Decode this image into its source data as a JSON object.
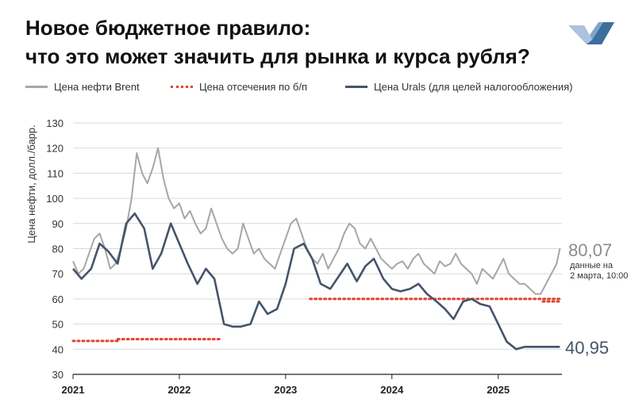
{
  "header": {
    "title": "Новое бюджетное правило:",
    "subtitle": "что это может значить для рынка и курса рубля?"
  },
  "colors": {
    "brent": "#a6a6a6",
    "cutoff": "#e0432f",
    "urals": "#44546a",
    "logo_light": "#a9c4dc",
    "logo_dark": "#3d6e9c"
  },
  "icons": {
    "logo": "brand-logo-icon"
  },
  "chart_data": {
    "type": "line",
    "title": "",
    "xlabel": "",
    "ylabel": "Цена нефти, долл./барр.",
    "ylim": [
      30,
      130
    ],
    "yticks": [
      30,
      40,
      50,
      60,
      70,
      80,
      90,
      100,
      110,
      120,
      130
    ],
    "xlim": [
      2021.0,
      2025.6
    ],
    "xticks": [
      {
        "x": 2021,
        "label": "2021"
      },
      {
        "x": 2022,
        "label": "2022"
      },
      {
        "x": 2023,
        "label": "2023"
      },
      {
        "x": 2024,
        "label": "2024"
      },
      {
        "x": 2025,
        "label": "2025"
      }
    ],
    "grid": "horizontal",
    "legend_position": "top",
    "series": [
      {
        "name": "Цена нефти Brent",
        "style": "solid",
        "x": [
          2021.0,
          2021.05,
          2021.1,
          2021.15,
          2021.2,
          2021.25,
          2021.3,
          2021.35,
          2021.4,
          2021.45,
          2021.5,
          2021.55,
          2021.6,
          2021.65,
          2021.7,
          2021.75,
          2021.8,
          2021.85,
          2021.9,
          2021.95,
          2022.0,
          2022.05,
          2022.1,
          2022.15,
          2022.2,
          2022.25,
          2022.3,
          2022.35,
          2022.4,
          2022.45,
          2022.5,
          2022.55,
          2022.6,
          2022.65,
          2022.7,
          2022.75,
          2022.8,
          2022.85,
          2022.9,
          2022.95,
          2023.0,
          2023.05,
          2023.1,
          2023.15,
          2023.2,
          2023.25,
          2023.3,
          2023.35,
          2023.4,
          2023.45,
          2023.5,
          2023.55,
          2023.6,
          2023.65,
          2023.7,
          2023.75,
          2023.8,
          2023.85,
          2023.9,
          2023.95,
          2024.0,
          2024.05,
          2024.1,
          2024.15,
          2024.2,
          2024.25,
          2024.3,
          2024.35,
          2024.4,
          2024.45,
          2024.5,
          2024.55,
          2024.6,
          2024.65,
          2024.7,
          2024.75,
          2024.8,
          2024.85,
          2024.9,
          2024.95,
          2025.0,
          2025.05,
          2025.1,
          2025.15,
          2025.2,
          2025.25,
          2025.3,
          2025.35,
          2025.4,
          2025.45,
          2025.5,
          2025.55,
          2025.58
        ],
        "values": [
          75,
          70,
          72,
          78,
          84,
          86,
          80,
          72,
          74,
          80,
          88,
          100,
          118,
          110,
          106,
          112,
          120,
          108,
          100,
          96,
          98,
          92,
          95,
          90,
          86,
          88,
          96,
          90,
          84,
          80,
          78,
          80,
          90,
          84,
          78,
          80,
          76,
          74,
          72,
          78,
          84,
          90,
          92,
          86,
          80,
          76,
          74,
          78,
          72,
          76,
          80,
          86,
          90,
          88,
          82,
          80,
          84,
          80,
          76,
          74,
          72,
          74,
          75,
          72,
          76,
          78,
          74,
          72,
          70,
          75,
          73,
          74,
          78,
          74,
          72,
          70,
          66,
          72,
          70,
          68,
          72,
          76,
          70,
          68,
          66,
          66,
          64,
          62,
          62,
          66,
          70,
          74,
          80.07
        ]
      },
      {
        "name": "Цена отсечения по б/п",
        "style": "dotted",
        "segments": [
          {
            "x": [
              2021.0,
              2021.42
            ],
            "values": [
              43.3,
              43.3
            ]
          },
          {
            "x": [
              2021.42,
              2022.4
            ],
            "values": [
              44,
              44
            ]
          },
          {
            "x": [
              2023.23,
              2025.58
            ],
            "values": [
              60,
              60
            ]
          },
          {
            "x": [
              2025.42,
              2025.58
            ],
            "values": [
              59,
              59
            ]
          }
        ]
      },
      {
        "name": "Цена Urals (для целей налогообложения)",
        "style": "solid",
        "x": [
          2021.0,
          2021.08,
          2021.17,
          2021.25,
          2021.33,
          2021.42,
          2021.5,
          2021.58,
          2021.67,
          2021.75,
          2021.83,
          2021.92,
          2022.0,
          2022.08,
          2022.17,
          2022.25,
          2022.33,
          2022.42,
          2022.5,
          2022.58,
          2022.67,
          2022.75,
          2022.83,
          2022.92,
          2023.0,
          2023.08,
          2023.17,
          2023.25,
          2023.33,
          2023.42,
          2023.5,
          2023.58,
          2023.67,
          2023.75,
          2023.83,
          2023.92,
          2024.0,
          2024.08,
          2024.17,
          2024.25,
          2024.33,
          2024.42,
          2024.5,
          2024.58,
          2024.67,
          2024.75,
          2024.83,
          2024.92,
          2025.0,
          2025.08,
          2025.17,
          2025.25,
          2025.33,
          2025.42,
          2025.5,
          2025.58
        ],
        "values": [
          72,
          68,
          72,
          82,
          79,
          74,
          90,
          94,
          88,
          72,
          78,
          90,
          82,
          74,
          66,
          72,
          68,
          50,
          49,
          49,
          50,
          59,
          54,
          56,
          66,
          80,
          82,
          76,
          66,
          64,
          69,
          74,
          67,
          73,
          76,
          68,
          64,
          63,
          64,
          66,
          62,
          59,
          56,
          52,
          59,
          60,
          58,
          57,
          50,
          43,
          40,
          40.95,
          40.95,
          40.95,
          40.95,
          40.95
        ]
      }
    ],
    "annotations": {
      "brent_last_value": "80,07",
      "brent_note_line1": "данные на",
      "brent_note_line2": "2 марта, 10:00",
      "urals_last_value": "40,95"
    }
  }
}
